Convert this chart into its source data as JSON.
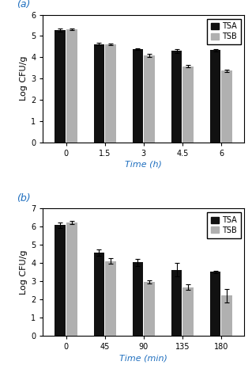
{
  "panel_a": {
    "label": "(a)",
    "x_labels": [
      "0",
      "1.5",
      "3",
      "4.5",
      "6"
    ],
    "tsa_values": [
      5.27,
      4.62,
      4.38,
      4.3,
      4.33
    ],
    "tsb_values": [
      5.31,
      4.61,
      4.09,
      3.57,
      3.37
    ],
    "tsa_errors": [
      0.07,
      0.05,
      0.05,
      0.1,
      0.06
    ],
    "tsb_errors": [
      0.04,
      0.05,
      0.08,
      0.05,
      0.05
    ],
    "ylabel": "Log CFU/g",
    "xlabel": "Time (h)",
    "ylim": [
      0,
      6
    ],
    "yticks": [
      0,
      1,
      2,
      3,
      4,
      5,
      6
    ]
  },
  "panel_b": {
    "label": "(b)",
    "x_labels": [
      "0",
      "45",
      "90",
      "135",
      "180"
    ],
    "tsa_values": [
      6.09,
      4.58,
      4.04,
      3.63,
      3.51
    ],
    "tsb_values": [
      6.21,
      4.1,
      2.97,
      2.67,
      2.21
    ],
    "tsa_errors": [
      0.15,
      0.18,
      0.2,
      0.38,
      0.08
    ],
    "tsb_errors": [
      0.08,
      0.15,
      0.1,
      0.15,
      0.38
    ],
    "ylabel": "Log CFU/g",
    "xlabel": "Time (min)",
    "ylim": [
      0,
      7
    ],
    "yticks": [
      0,
      1,
      2,
      3,
      4,
      5,
      6,
      7
    ]
  },
  "tsa_color": "#111111",
  "tsb_color": "#b0b0b0",
  "label_color": "#1f6fbf",
  "bar_width": 0.28,
  "capsize": 2,
  "legend_fontsize": 7,
  "tick_fontsize": 7,
  "axis_label_fontsize": 8,
  "panel_label_fontsize": 9
}
